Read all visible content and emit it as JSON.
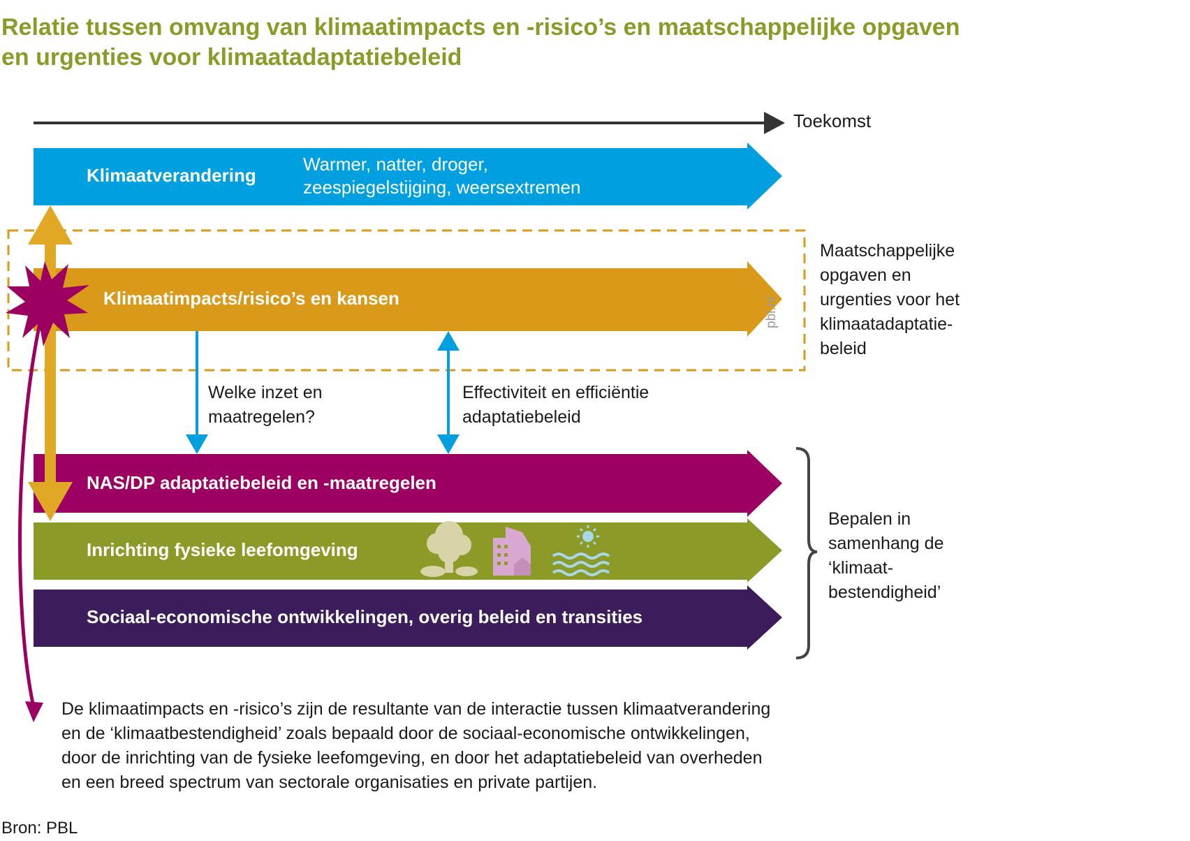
{
  "title": "Relatie tussen omvang van klimaatimpacts en -risico’s en maatschappelijke opgaven en urgenties voor klimaatadaptatiebeleid",
  "timeline": {
    "label": "Toekomst"
  },
  "bars": [
    {
      "label": "Klimaatverandering",
      "sub_line1": "Warmer, natter, droger,",
      "sub_line2": "zeespiegelstijging, weersextremen",
      "color": "#009fe0"
    },
    {
      "label": "Klimaatimpacts/risico’s en kansen",
      "color": "#d99a1a"
    },
    {
      "label": "NAS/DP adaptatiebeleid en -maatregelen",
      "color": "#9c0060"
    },
    {
      "label": "Inrichting fysieke leefomgeving",
      "color": "#8c9a28",
      "icons": [
        "tree-icon",
        "buildings-icon",
        "sun-water-icon"
      ]
    },
    {
      "label": "Sociaal-economische ontwikkelingen, overig beleid en transities",
      "color": "#3d1c5c"
    }
  ],
  "dashed_box_label": [
    "Maatschappelijke",
    "opgaven en",
    "urgenties voor het",
    "klimaatadaptatie-",
    "beleid"
  ],
  "watermark": "pbl.nl",
  "question_left": [
    "Welke inzet en",
    "maatregelen?"
  ],
  "question_right": [
    "Effectiviteit en efficiëntie",
    "adaptatiebeleid"
  ],
  "brace_label": [
    "Bepalen in",
    "samenhang de",
    "‘klimaat-",
    "bestendigheid’"
  ],
  "footnote": [
    "De klimaatimpacts en -risico’s zijn de resultante van de interactie tussen klimaatverandering",
    "en de  ‘klimaatbestendigheid’ zoals bepaald door de sociaal-economische ontwikkelingen,",
    "door de inrichting  van de fysieke leefomgeving, en door het adaptatiebeleid van overheden",
    "en een breed spectrum van sectorale  organisaties en private partijen."
  ],
  "source": "Bron: PBL",
  "colors": {
    "title": "#8c9a28",
    "arrow_blue": "#009fe0",
    "arrow_gold": "#e0a824",
    "arrow_magenta": "#9c0060",
    "icon_fill": "#d9d3a8",
    "icon_pink": "#d9a8d0",
    "icon_water": "#a8d8e8"
  }
}
